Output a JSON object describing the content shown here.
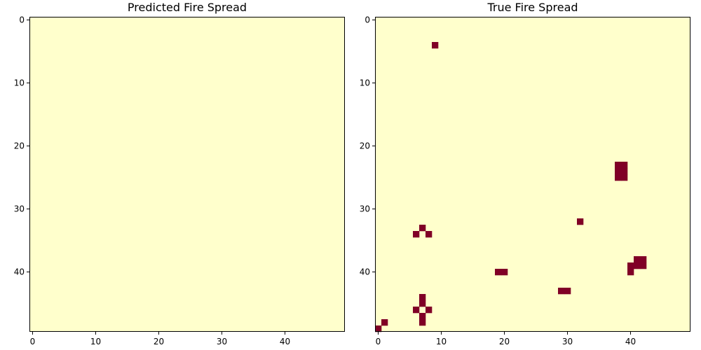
{
  "chart_data": [
    {
      "type": "heatmap",
      "title": "Predicted Fire Spread",
      "grid_size": [
        50,
        50
      ],
      "x_ticks": [
        0,
        10,
        20,
        30,
        40
      ],
      "y_ticks": [
        0,
        10,
        20,
        30,
        40
      ],
      "xlim": [
        -0.5,
        49.5
      ],
      "ylim": [
        49.5,
        -0.5
      ],
      "colormap": {
        "unburned": "#ffffcc",
        "burning": "#800026"
      },
      "burning_cells": []
    },
    {
      "type": "heatmap",
      "title": "True Fire Spread",
      "grid_size": [
        50,
        50
      ],
      "x_ticks": [
        0,
        10,
        20,
        30,
        40
      ],
      "y_ticks": [
        0,
        10,
        20,
        30,
        40
      ],
      "xlim": [
        -0.5,
        49.5
      ],
      "ylim": [
        49.5,
        -0.5
      ],
      "colormap": {
        "unburned": "#ffffcc",
        "burning": "#800026"
      },
      "burning_cells": [
        [
          9,
          4
        ],
        [
          38,
          23
        ],
        [
          39,
          23
        ],
        [
          38,
          24
        ],
        [
          39,
          24
        ],
        [
          38,
          25
        ],
        [
          39,
          25
        ],
        [
          32,
          32
        ],
        [
          7,
          33
        ],
        [
          6,
          34
        ],
        [
          8,
          34
        ],
        [
          41,
          38
        ],
        [
          42,
          38
        ],
        [
          40,
          39
        ],
        [
          41,
          39
        ],
        [
          42,
          39
        ],
        [
          40,
          40
        ],
        [
          19,
          40
        ],
        [
          20,
          40
        ],
        [
          29,
          43
        ],
        [
          30,
          43
        ],
        [
          7,
          44
        ],
        [
          7,
          45
        ],
        [
          6,
          46
        ],
        [
          8,
          46
        ],
        [
          7,
          47
        ],
        [
          7,
          48
        ],
        [
          1,
          48
        ],
        [
          0,
          49
        ]
      ]
    }
  ]
}
